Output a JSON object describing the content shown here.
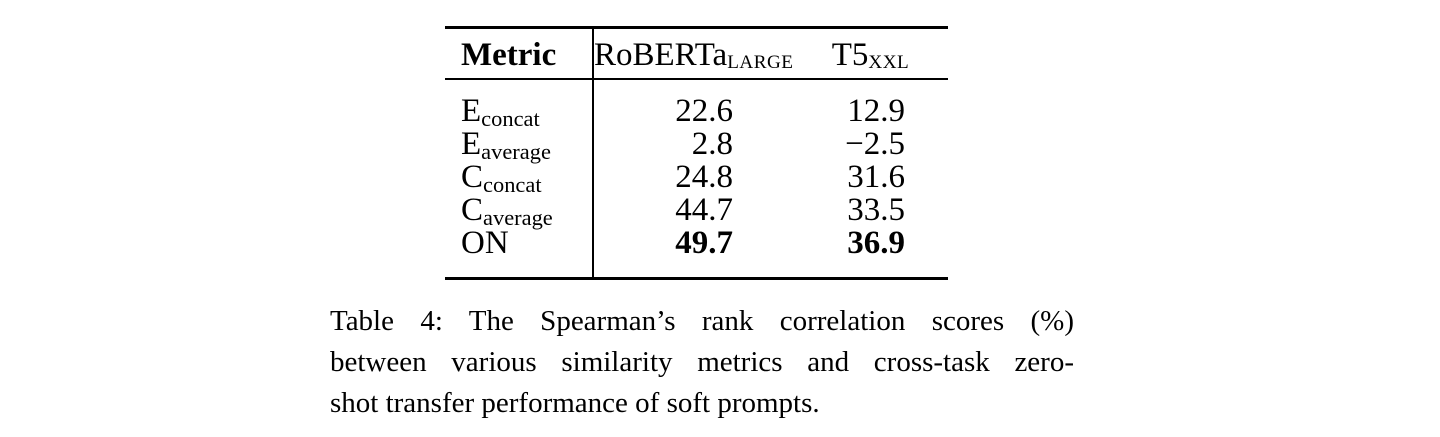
{
  "table": {
    "header": {
      "metric": "Metric",
      "model1_base": "RoBERTa",
      "model1_sub": "LARGE",
      "model2_base": "T5",
      "model2_sub": "XXL"
    },
    "rows": [
      {
        "base": "E",
        "sub": "concat",
        "roberta": "22.6",
        "t5": "12.9"
      },
      {
        "base": "E",
        "sub": "average",
        "roberta": "2.8",
        "t5": "−2.5"
      },
      {
        "base": "C",
        "sub": "concat",
        "roberta": "24.8",
        "t5": "31.6"
      },
      {
        "base": "C",
        "sub": "average",
        "roberta": "44.7",
        "t5": "33.5"
      },
      {
        "base": "ON",
        "sub": "",
        "roberta": "49.7",
        "t5": "36.9"
      }
    ]
  },
  "caption": {
    "lines": [
      "Table 4: The Spearman’s rank correlation scores (%)",
      "between various similarity metrics and cross-task zero-",
      "shot transfer performance of soft prompts."
    ]
  }
}
